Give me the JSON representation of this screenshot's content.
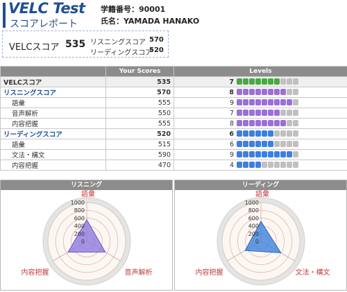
{
  "header": {
    "logo_title": "VELC Test",
    "logo_subtitle": "スコアレポート",
    "student_id_line": "学籍番号：90001",
    "name_line": "氏名：YAMADA HANAKO"
  },
  "summary": {
    "label": "VELCスコア",
    "total": "535",
    "listening_label": "リスニングスコア",
    "listening_score": "570",
    "reading_label": "リーディングスコア",
    "reading_score": "520"
  },
  "table": {
    "col_scores": "Your Scores",
    "col_levels": "Levels",
    "max_level": 10,
    "rows": [
      {
        "name": "VELCスコア",
        "score": "535",
        "level": 7,
        "kind": "total",
        "color": "#49a842"
      },
      {
        "name": "リスニングスコア",
        "score": "570",
        "level": 8,
        "kind": "sec",
        "color": "#9b6fd8"
      },
      {
        "name": "語彙",
        "score": "555",
        "level": 9,
        "kind": "sub",
        "color": "#9b6fd8"
      },
      {
        "name": "音声解析",
        "score": "550",
        "level": 7,
        "kind": "sub",
        "color": "#9b6fd8"
      },
      {
        "name": "内容把握",
        "score": "555",
        "level": 8,
        "kind": "sub",
        "color": "#9b6fd8"
      },
      {
        "name": "リーディングスコア",
        "score": "520",
        "level": 6,
        "kind": "sec",
        "color": "#3d7fe0"
      },
      {
        "name": "語彙",
        "score": "515",
        "level": 6,
        "kind": "sub",
        "color": "#3d7fe0"
      },
      {
        "name": "文法・構文",
        "score": "590",
        "level": 9,
        "kind": "sub",
        "color": "#3d7fe0"
      },
      {
        "name": "内容把握",
        "score": "470",
        "level": 4,
        "kind": "sub",
        "color": "#3d7fe0"
      }
    ]
  },
  "radars": [
    {
      "title": "リスニング",
      "axes": [
        "語彙",
        "音声解析",
        "内容把握"
      ],
      "values": [
        555,
        550,
        555
      ],
      "fill": "#8f7be0",
      "stroke": "#6a55c8"
    },
    {
      "title": "リーディング",
      "axes": [
        "語彙",
        "文法・構文",
        "内容把握"
      ],
      "values": [
        515,
        590,
        470
      ],
      "fill": "#3d82dd",
      "stroke": "#2a64b8"
    }
  ],
  "radar_scale": {
    "max": 1000,
    "ticks": [
      "1000",
      "800",
      "600",
      "400",
      "200",
      "0"
    ]
  },
  "chart_data": [
    {
      "type": "radar",
      "title": "リスニング",
      "categories": [
        "語彙",
        "音声解析",
        "内容把握"
      ],
      "values": [
        555,
        550,
        555
      ],
      "ylim": [
        0,
        1000
      ]
    },
    {
      "type": "radar",
      "title": "リーディング",
      "categories": [
        "語彙",
        "文法・構文",
        "内容把握"
      ],
      "values": [
        515,
        590,
        470
      ],
      "ylim": [
        0,
        1000
      ]
    }
  ],
  "colors": {
    "brand": "#1f4f8f",
    "header_gray": "#8c8c8c",
    "axis_label": "#c0393b",
    "level_off": "#c0c0c0"
  }
}
